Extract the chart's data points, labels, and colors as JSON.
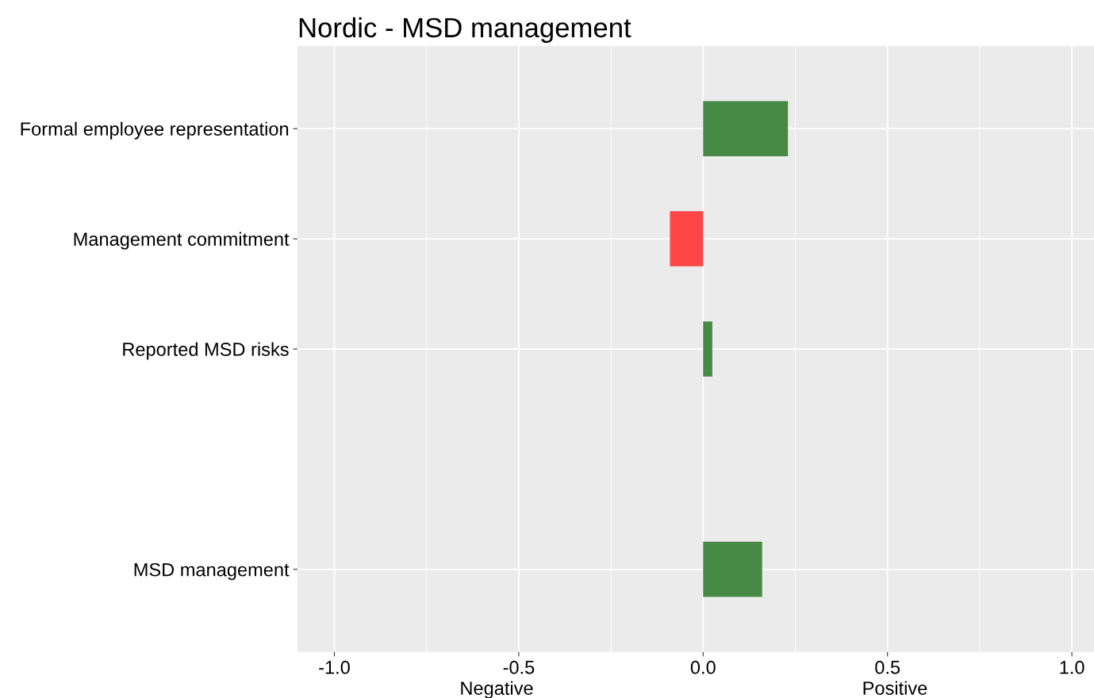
{
  "chart_data": {
    "type": "bar",
    "orientation": "horizontal",
    "title": "Nordic - MSD management",
    "categories": [
      "Formal employee representation",
      "Management commitment",
      "Reported MSD risks",
      null,
      "MSD management"
    ],
    "values": [
      0.23,
      -0.09,
      0.025,
      null,
      0.16
    ],
    "colors": [
      "#468a46",
      "#fe4646",
      "#468a46",
      null,
      "#468a46"
    ],
    "xlim": [
      -1.1,
      1.06
    ],
    "xticks": [
      {
        "value": -1.0,
        "label": "-1.0"
      },
      {
        "value": -0.5,
        "label": "-0.5"
      },
      {
        "value": 0.0,
        "label": "0.0"
      },
      {
        "value": 0.5,
        "label": "0.5"
      },
      {
        "value": 1.0,
        "label": "1.0"
      }
    ],
    "annotations": [
      "Negative",
      "Positive"
    ],
    "grid": true
  }
}
